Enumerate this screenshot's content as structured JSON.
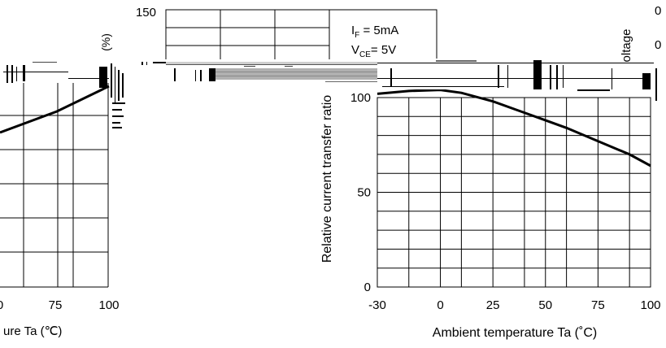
{
  "chart_data": [
    {
      "type": "line",
      "title": "",
      "xlabel": "ure Ta (℃)",
      "ylabel": "(%)",
      "xlim": [
        25,
        100
      ],
      "ylim": [
        0,
        150
      ],
      "x_ticks": [
        "0",
        "75",
        "100"
      ],
      "series": [
        {
          "x": [
            25,
            75,
            100
          ],
          "y": [
            45,
            75,
            90
          ]
        }
      ]
    },
    {
      "type": "line",
      "title": "",
      "xlabel": "",
      "ylabel": "",
      "y_ticks": [
        "150"
      ],
      "annotations": [
        "I",
        "F",
        " = 5mA",
        "V",
        "CE",
        "= 5V"
      ]
    },
    {
      "type": "line",
      "title": "",
      "xlabel": "Ambient temperature Ta (˚C)",
      "ylabel": "Relative current transfer ratio",
      "xlim": [
        -30,
        100
      ],
      "ylim": [
        0,
        100
      ],
      "x_ticks": [
        "-30",
        "0",
        "25",
        "50",
        "75",
        "100"
      ],
      "y_ticks": [
        "0",
        "50",
        "100"
      ],
      "grid": true,
      "series": [
        {
          "x": [
            -30,
            -15,
            0,
            10,
            25,
            40,
            50,
            60,
            75,
            90,
            100
          ],
          "y": [
            102,
            103.5,
            104,
            102.5,
            98,
            92,
            88,
            84,
            77,
            70,
            64
          ]
        }
      ]
    },
    {
      "type": "line",
      "title": "",
      "ylabel": "oltage",
      "y_ticks": [
        "0",
        "0"
      ]
    }
  ]
}
